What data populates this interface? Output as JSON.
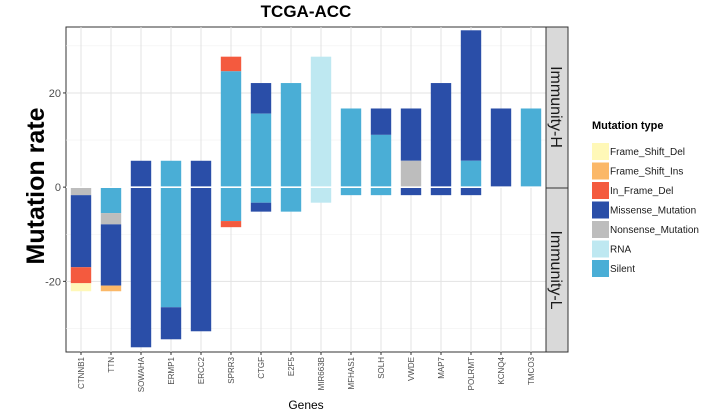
{
  "chart_data": {
    "type": "bar",
    "stacked": true,
    "title": "TCGA-ACC",
    "xlabel": "Genes",
    "ylabel": "Mutation rate",
    "ylim": [
      -35,
      34
    ],
    "yticks": [
      -20,
      0,
      20
    ],
    "facets": [
      "Immunity-H",
      "Immunity-L"
    ],
    "legend": {
      "title": "Mutation type",
      "position": "right",
      "entries": [
        "Frame_Shift_Del",
        "Frame_Shift_Ins",
        "In_Frame_Del",
        "Missense_Mutation",
        "Nonsense_Mutation",
        "RNA",
        "Silent"
      ]
    },
    "colors": {
      "Frame_Shift_Del": "#fff8b8",
      "Frame_Shift_Ins": "#fbb868",
      "In_Frame_Del": "#f45a3e",
      "Missense_Mutation": "#2a4ea8",
      "Nonsense_Mutation": "#bdbdbd",
      "RNA": "#bee8f1",
      "Silent": "#4aaed6"
    },
    "categories": [
      "CTNNB1",
      "TTN",
      "SOWAHA",
      "ERMP1",
      "ERCC2",
      "SPRR3",
      "CTGF",
      "E2F5",
      "MIR663B",
      "MFHAS1",
      "SOLH",
      "VWDE",
      "MAP7",
      "POLRMT",
      "KCNQ4",
      "TMCO3"
    ],
    "bars": [
      {
        "gene": "CTNNB1",
        "segments": [
          {
            "type": "Nonsense_Mutation",
            "from": 0,
            "to": -1.7
          },
          {
            "type": "Missense_Mutation",
            "from": -1.7,
            "to": -17
          },
          {
            "type": "In_Frame_Del",
            "from": -17,
            "to": -20.4
          },
          {
            "type": "Frame_Shift_Del",
            "from": -20.4,
            "to": -22.1
          }
        ]
      },
      {
        "gene": "TTN",
        "segments": [
          {
            "type": "Silent",
            "from": 0,
            "to": -5.5
          },
          {
            "type": "Nonsense_Mutation",
            "from": -5.5,
            "to": -7.9
          },
          {
            "type": "Missense_Mutation",
            "from": -7.9,
            "to": -20.9
          },
          {
            "type": "Frame_Shift_Ins",
            "from": -20.9,
            "to": -22.1
          }
        ]
      },
      {
        "gene": "SOWAHA",
        "segments": [
          {
            "type": "Missense_Mutation",
            "from": 5.6,
            "to": -34
          }
        ]
      },
      {
        "gene": "ERMP1",
        "segments": [
          {
            "type": "Silent",
            "from": 5.6,
            "to": -25.5
          },
          {
            "type": "Missense_Mutation",
            "from": -25.5,
            "to": -32.3
          }
        ]
      },
      {
        "gene": "ERCC2",
        "segments": [
          {
            "type": "Missense_Mutation",
            "from": 5.6,
            "to": -30.6
          }
        ]
      },
      {
        "gene": "SPRR3",
        "segments": [
          {
            "type": "In_Frame_Del",
            "from": 27.7,
            "to": 24.6
          },
          {
            "type": "Silent",
            "from": 24.6,
            "to": -7.2
          },
          {
            "type": "In_Frame_Del",
            "from": -7.2,
            "to": -8.5
          }
        ]
      },
      {
        "gene": "CTGF",
        "segments": [
          {
            "type": "Missense_Mutation",
            "from": 22.1,
            "to": 15.6
          },
          {
            "type": "Silent",
            "from": 15.6,
            "to": -3.3
          },
          {
            "type": "Missense_Mutation",
            "from": -3.3,
            "to": -5.2
          }
        ]
      },
      {
        "gene": "E2F5",
        "segments": [
          {
            "type": "Silent",
            "from": 22.1,
            "to": -5.2
          }
        ]
      },
      {
        "gene": "MIR663B",
        "segments": [
          {
            "type": "RNA",
            "from": 27.7,
            "to": -3.3
          }
        ]
      },
      {
        "gene": "MFHAS1",
        "segments": [
          {
            "type": "Silent",
            "from": 16.7,
            "to": -1.7
          }
        ]
      },
      {
        "gene": "SOLH",
        "segments": [
          {
            "type": "Missense_Mutation",
            "from": 16.7,
            "to": 11.1
          },
          {
            "type": "Silent",
            "from": 11.1,
            "to": -1.7
          }
        ]
      },
      {
        "gene": "VWDE",
        "segments": [
          {
            "type": "Missense_Mutation",
            "from": 16.7,
            "to": 5.6
          },
          {
            "type": "Nonsense_Mutation",
            "from": 5.6,
            "to": 0
          },
          {
            "type": "Missense_Mutation",
            "from": 0,
            "to": -1.7
          }
        ]
      },
      {
        "gene": "MAP7",
        "segments": [
          {
            "type": "Missense_Mutation",
            "from": 22.1,
            "to": -1.7
          }
        ]
      },
      {
        "gene": "POLRMT",
        "segments": [
          {
            "type": "Missense_Mutation",
            "from": 33.3,
            "to": 5.6
          },
          {
            "type": "Silent",
            "from": 5.6,
            "to": 0
          },
          {
            "type": "Missense_Mutation",
            "from": 0,
            "to": -1.7
          }
        ]
      },
      {
        "gene": "KCNQ4",
        "segments": [
          {
            "type": "Missense_Mutation",
            "from": 16.7,
            "to": 0
          }
        ]
      },
      {
        "gene": "TMCO3",
        "segments": [
          {
            "type": "Silent",
            "from": 16.7,
            "to": 0
          }
        ]
      }
    ]
  }
}
